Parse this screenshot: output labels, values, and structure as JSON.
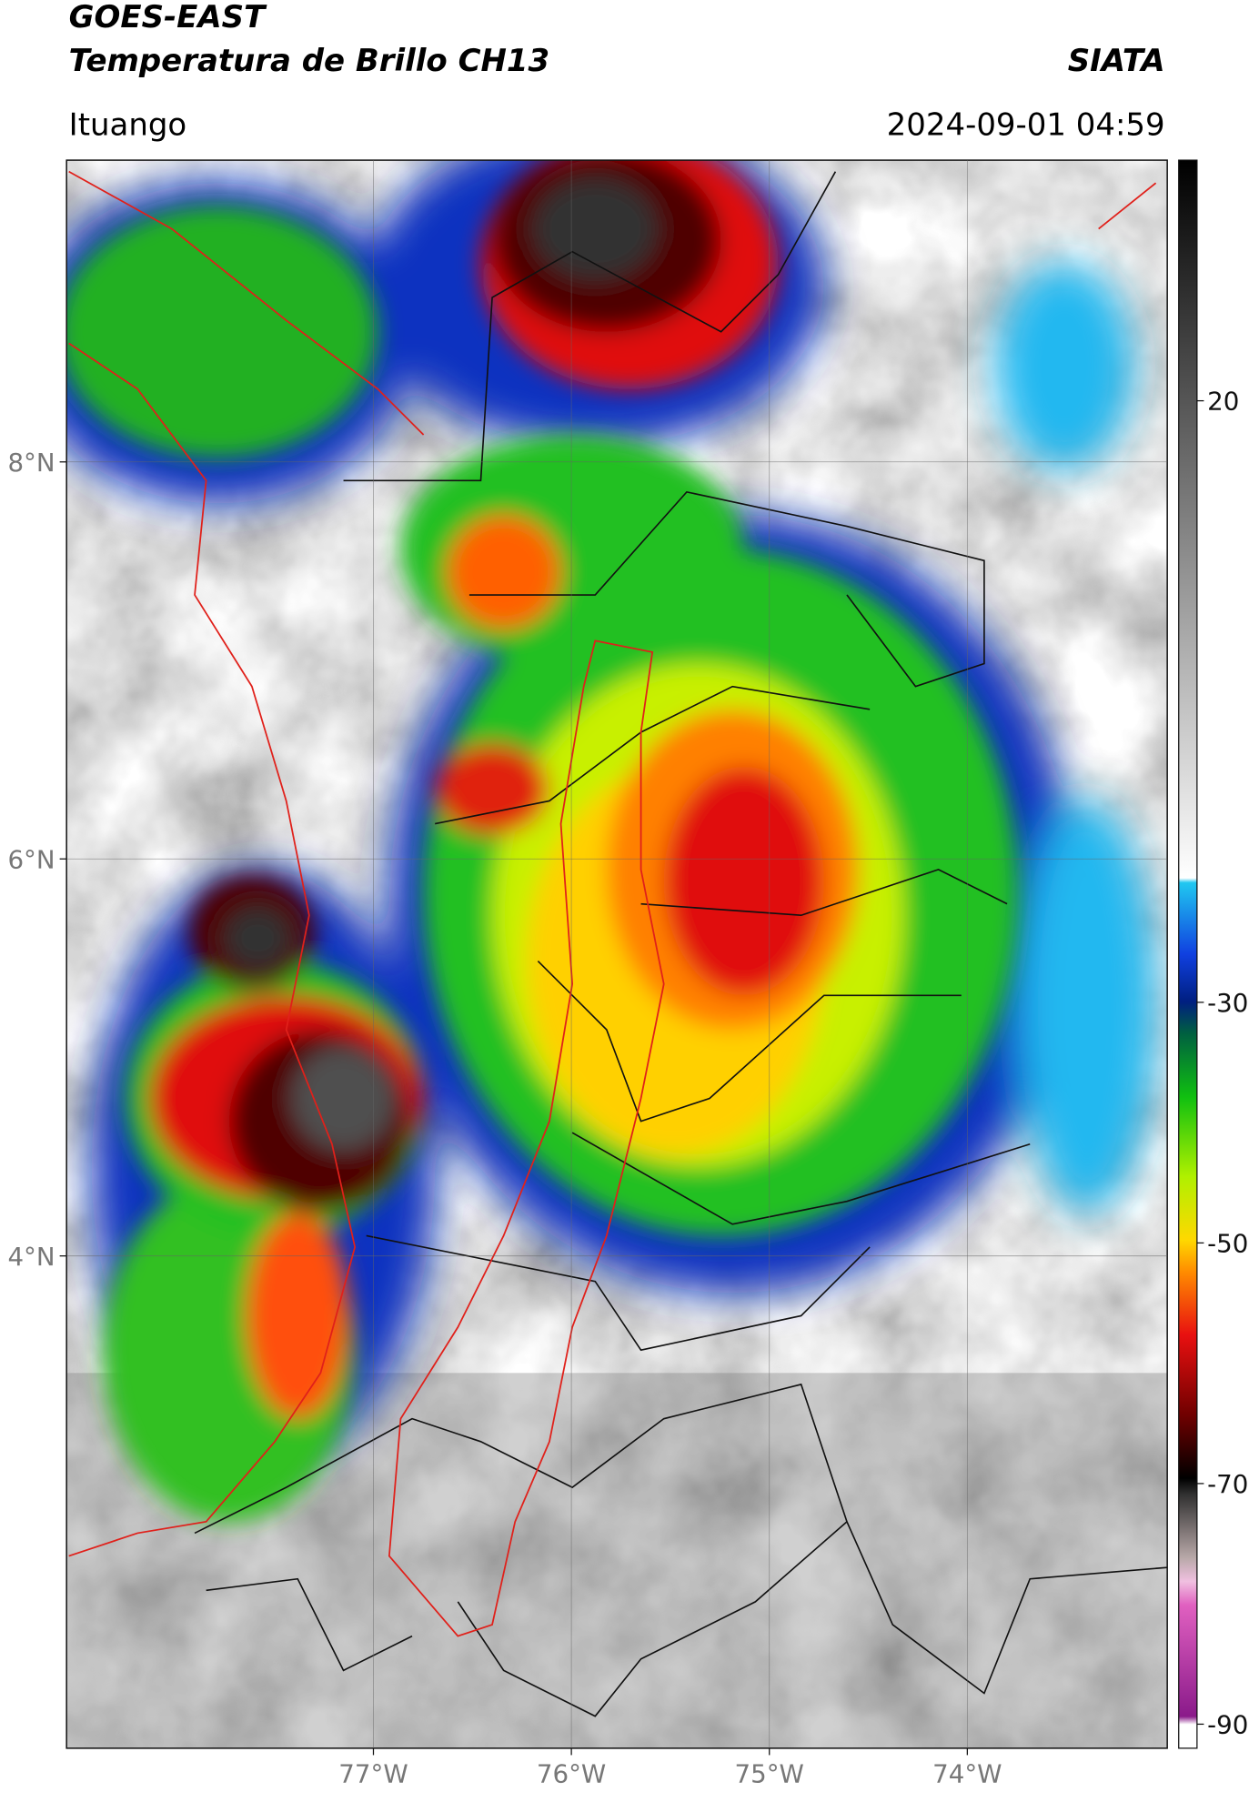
{
  "header": {
    "title": "GOES-EAST",
    "subtitle": "Temperatura de Brillo CH13",
    "brand": "SIATA",
    "region": "Ituango",
    "datetime": "2024-09-01 04:59"
  },
  "map": {
    "xlim": [
      -78.55,
      -72.99
    ],
    "ylim": [
      1.52,
      9.52
    ],
    "xticks": [
      {
        "value": -77,
        "label": "77°W"
      },
      {
        "value": -76,
        "label": "76°W"
      },
      {
        "value": -75,
        "label": "75°W"
      },
      {
        "value": -74,
        "label": "74°W"
      }
    ],
    "yticks": [
      {
        "value": 8,
        "label": "8°N"
      },
      {
        "value": 6,
        "label": "6°N"
      },
      {
        "value": 4,
        "label": "4°N"
      }
    ]
  },
  "colorbar": {
    "lim": [
      -92,
      40
    ],
    "ticks": [
      20,
      -30,
      -50,
      -70,
      -90
    ]
  }
}
